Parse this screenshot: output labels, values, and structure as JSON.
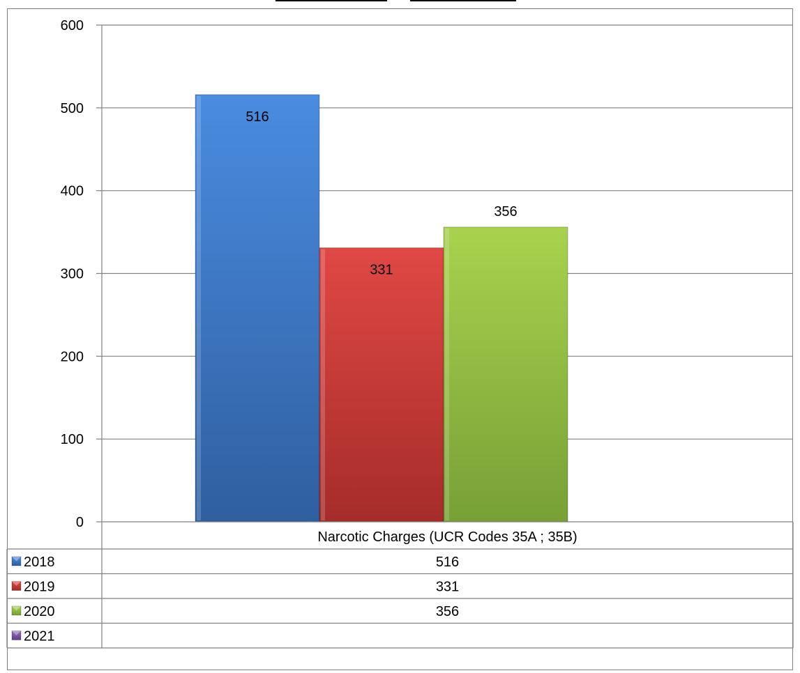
{
  "chart_data": {
    "type": "bar",
    "title": "",
    "xlabel": "",
    "ylabel": "",
    "categories": [
      "Narcotic Charges  (UCR Codes 35A ; 35B)"
    ],
    "series": [
      {
        "name": "2018",
        "values": [
          516
        ],
        "color": "#3F7FD0"
      },
      {
        "name": "2019",
        "values": [
          331
        ],
        "color": "#D43C3A"
      },
      {
        "name": "2020",
        "values": [
          356
        ],
        "color": "#9CC544"
      },
      {
        "name": "2021",
        "values": [
          null
        ],
        "color": "#7B52A8"
      }
    ],
    "ylim": [
      0,
      600
    ],
    "yticks": [
      0,
      100,
      200,
      300,
      400,
      500,
      600
    ],
    "grid": true,
    "legend": "data-table-below",
    "data_labels": [
      "516",
      "331",
      "356"
    ],
    "table_values": [
      "516",
      "331",
      "356",
      ""
    ]
  }
}
